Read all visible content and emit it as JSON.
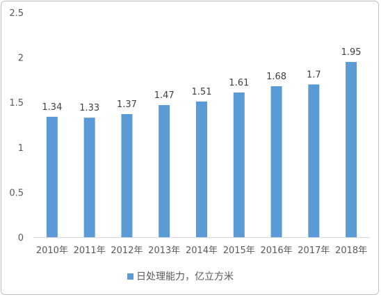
{
  "chart_data": {
    "type": "bar",
    "categories": [
      "2010年",
      "2011年",
      "2012年",
      "2013年",
      "2014年",
      "2015年",
      "2016年",
      "2017年",
      "2018年"
    ],
    "series": [
      {
        "name": "日处理能力，亿立方米",
        "values": [
          1.34,
          1.33,
          1.37,
          1.47,
          1.51,
          1.61,
          1.68,
          1.7,
          1.95
        ],
        "color": "#5b9bd5"
      }
    ],
    "data_labels": [
      "1.34",
      "1.33",
      "1.37",
      "1.47",
      "1.51",
      "1.61",
      "1.68",
      "1.7",
      "1.95"
    ],
    "y_ticks": [
      "0",
      "0.5",
      "1",
      "1.5",
      "2",
      "2.5"
    ],
    "ylim": [
      0,
      2.5
    ],
    "grid": false,
    "legend_position": "bottom"
  }
}
